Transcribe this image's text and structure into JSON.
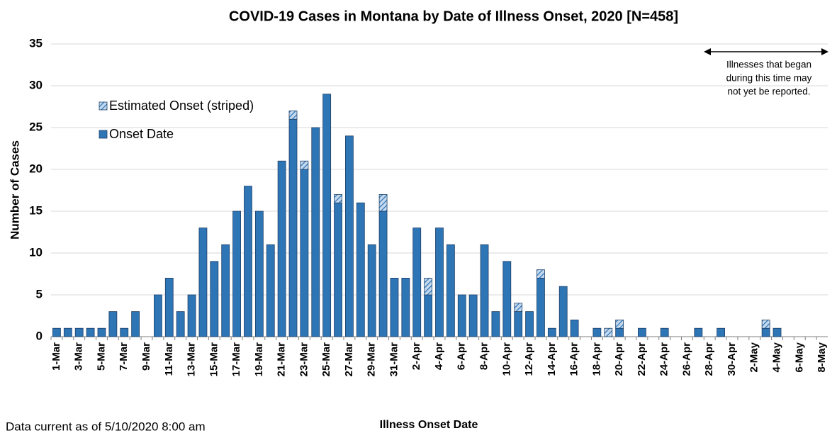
{
  "chart_data": {
    "type": "bar",
    "title": "COVID-19 Cases in Montana by Date of Illness Onset, 2020 [N=458]",
    "ylabel": "Number of Cases",
    "xlabel": "Illness Onset Date",
    "footnote": "Data current as of 5/10/2020 8:00 am",
    "annotation": [
      "Illnesses that began",
      "during this time may",
      "not yet be reported."
    ],
    "categories": [
      "1-Mar",
      null,
      "3-Mar",
      null,
      "5-Mar",
      null,
      "7-Mar",
      null,
      "9-Mar",
      null,
      "11-Mar",
      null,
      "13-Mar",
      null,
      "15-Mar",
      null,
      "17-Mar",
      null,
      "19-Mar",
      null,
      "21-Mar",
      null,
      "23-Mar",
      null,
      "25-Mar",
      null,
      "27-Mar",
      null,
      "29-Mar",
      null,
      "31-Mar",
      null,
      "2-Apr",
      null,
      "4-Apr",
      null,
      "6-Apr",
      null,
      "8-Apr",
      null,
      "10-Apr",
      null,
      "12-Apr",
      null,
      "14-Apr",
      null,
      "16-Apr",
      null,
      "18-Apr",
      null,
      "20-Apr",
      null,
      "22-Apr",
      null,
      "24-Apr",
      null,
      "26-Apr",
      null,
      "28-Apr",
      null,
      "30-Apr",
      null,
      "2-May",
      null,
      "4-May",
      null,
      "6-May",
      null,
      "8-May"
    ],
    "series": [
      {
        "name": "Estimated Onset (striped)",
        "color": "#2e75b6",
        "striped": true,
        "values": [
          0,
          0,
          0,
          0,
          0,
          0,
          0,
          0,
          0,
          0,
          0,
          0,
          0,
          0,
          0,
          0,
          0,
          0,
          0,
          0,
          0,
          1,
          1,
          0,
          0,
          1,
          0,
          0,
          0,
          2,
          0,
          0,
          0,
          2,
          0,
          0,
          0,
          0,
          0,
          0,
          0,
          1,
          0,
          1,
          0,
          0,
          0,
          0,
          0,
          1,
          1,
          0,
          0,
          0,
          0,
          0,
          0,
          0,
          0,
          0,
          0,
          0,
          0,
          1,
          0,
          0,
          0,
          0,
          0
        ]
      },
      {
        "name": "Onset Date",
        "color": "#2e75b6",
        "striped": false,
        "values": [
          1,
          1,
          1,
          1,
          1,
          3,
          1,
          3,
          0,
          5,
          7,
          3,
          5,
          13,
          9,
          11,
          15,
          18,
          15,
          11,
          21,
          26,
          20,
          25,
          29,
          16,
          24,
          16,
          11,
          15,
          7,
          7,
          13,
          5,
          13,
          11,
          5,
          5,
          11,
          3,
          9,
          3,
          3,
          7,
          1,
          6,
          2,
          0,
          1,
          0,
          1,
          0,
          1,
          0,
          1,
          0,
          0,
          1,
          0,
          1,
          0,
          0,
          0,
          1,
          1,
          0,
          0,
          0,
          0
        ]
      }
    ],
    "stacked": true,
    "ylim": [
      0,
      35
    ],
    "yticks": [
      0,
      5,
      10,
      15,
      20,
      25,
      30,
      35
    ],
    "grid": true
  }
}
